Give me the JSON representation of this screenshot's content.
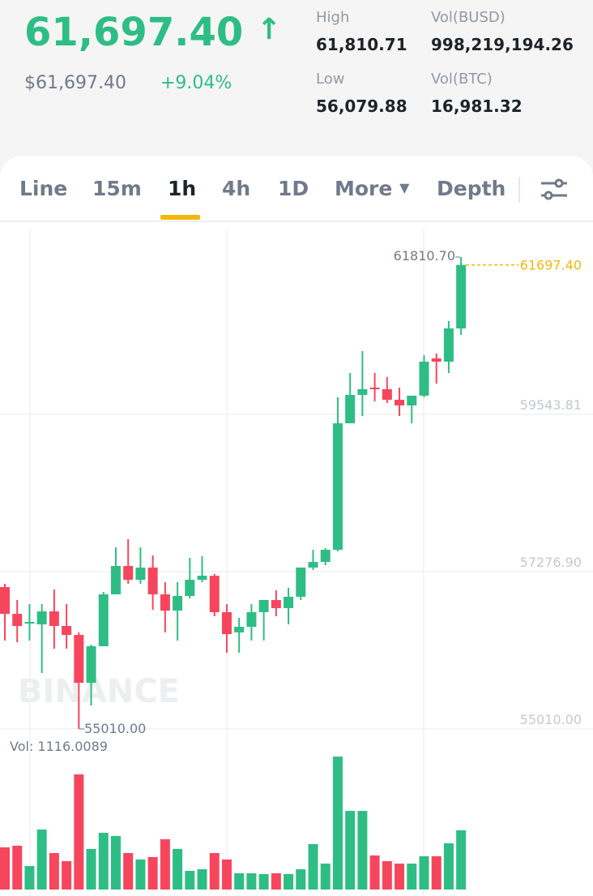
{
  "header": {
    "price": "61,697.40",
    "arrow": "↑",
    "fiat_price": "$61,697.40",
    "change": "+9.04%",
    "stats": [
      {
        "label": "High",
        "value": "61,810.71"
      },
      {
        "label": "Vol(BUSD)",
        "value": "998,219,194.26"
      },
      {
        "label": "Low",
        "value": "56,079.88"
      },
      {
        "label": "Vol(BTC)",
        "value": "16,981.32"
      }
    ]
  },
  "tabs": [
    "Line",
    "15m",
    "1h",
    "4h",
    "1D",
    "More",
    "Depth"
  ],
  "watermark": "BINANCE",
  "chart_data": {
    "type": "candlestick",
    "up_color": "#2ebd85",
    "down_color": "#f6465d",
    "open": [
      57055,
      56669,
      56552,
      56517,
      56704,
      56494,
      56365,
      55676,
      56202,
      56950,
      57359,
      57160,
      57336,
      56950,
      56716,
      56926,
      57160,
      57218,
      56693,
      56401,
      56482,
      56693,
      56868,
      56751,
      56915,
      57336,
      57417,
      57592,
      59415,
      59824,
      59929,
      59906,
      59754,
      59672,
      59813,
      60350,
      60303,
      60782
    ],
    "high": [
      57102,
      56868,
      56809,
      56809,
      57020,
      56809,
      56401,
      56225,
      56985,
      57627,
      57744,
      57627,
      57511,
      57125,
      57125,
      57476,
      57499,
      57243,
      56809,
      56611,
      56809,
      56834,
      57008,
      57043,
      57300,
      57592,
      57616,
      59789,
      60140,
      60455,
      60140,
      60081,
      59929,
      59813,
      60397,
      60420,
      60888,
      61810.7
    ],
    "low": [
      56284,
      56260,
      56284,
      55816,
      56167,
      56167,
      55010,
      55349,
      56202,
      56950,
      57102,
      57102,
      56728,
      56401,
      56284,
      56891,
      57125,
      56634,
      56108,
      56108,
      56284,
      56284,
      56634,
      56517,
      56868,
      57300,
      57370,
      57569,
      59415,
      59520,
      59731,
      59707,
      59520,
      59415,
      59789,
      59988,
      60140,
      60689
    ],
    "close": [
      56669,
      56494,
      56552,
      56704,
      56494,
      56365,
      55676,
      56202,
      56950,
      57359,
      57160,
      57336,
      56950,
      56716,
      56926,
      57160,
      57218,
      56693,
      56377,
      56482,
      56693,
      56868,
      56751,
      56915,
      57336,
      57417,
      57592,
      59415,
      59824,
      59906,
      59906,
      59754,
      59672,
      59813,
      60303,
      60303,
      60782,
      61697.4
    ],
    "volumes": [
      795,
      826,
      443,
      1131,
      688,
      535,
      2171,
      765,
      1070,
      1009,
      688,
      566,
      612,
      948,
      765,
      352,
      382,
      688,
      566,
      306,
      306,
      291,
      306,
      291,
      382,
      856,
      489,
      2507,
      1483,
      1483,
      642,
      535,
      489,
      489,
      627,
      627,
      871,
      1116.0089
    ],
    "volume_label": "Vol: 1116.0089",
    "ylim": [
      55010,
      62208
    ],
    "yticks": [
      {
        "value": 55010,
        "label": "55010.00"
      },
      {
        "value": 57276.9,
        "label": "57276.90"
      },
      {
        "value": 59543.81,
        "label": "59543.81"
      }
    ],
    "vlim": [
      0,
      2600
    ],
    "annotations": [
      {
        "value": 61810.7,
        "label": "61810.70"
      },
      {
        "value": 55010,
        "label": "55010.00"
      }
    ],
    "last_price": {
      "value": 61697.4,
      "label": "61697.40",
      "color": "#f0b90b"
    }
  }
}
